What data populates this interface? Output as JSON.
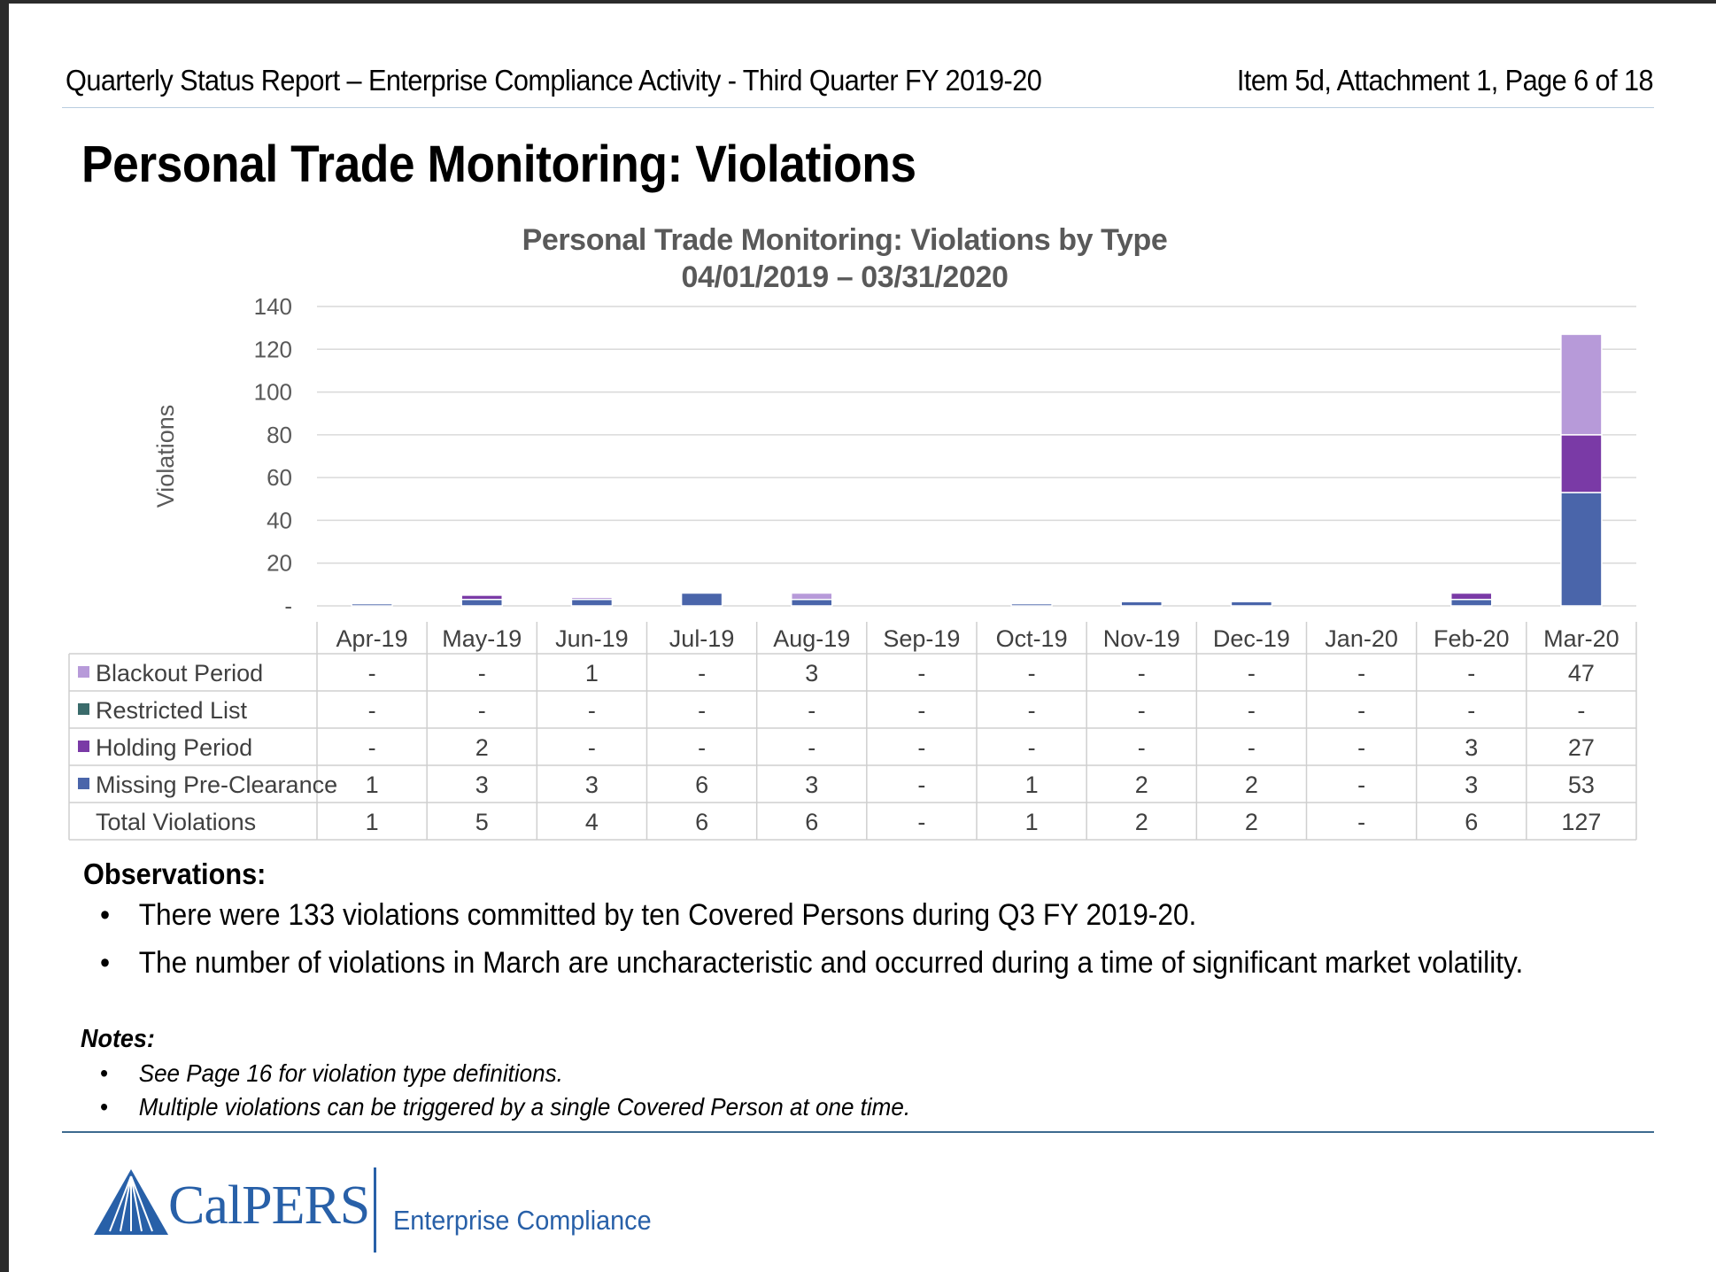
{
  "header": {
    "left": "Quarterly Status Report – Enterprise Compliance Activity - Third Quarter FY 2019-20",
    "right": "Item 5d, Attachment 1, Page 6 of 18"
  },
  "page_title": "Personal Trade Monitoring: Violations",
  "chart_data": {
    "type": "bar",
    "stacked": true,
    "title": "Personal Trade Monitoring: Violations by Type",
    "subtitle": "04/01/2019 – 03/31/2020",
    "xlabel": "",
    "ylabel": "Violations",
    "ylim": [
      0,
      140
    ],
    "yticks": [
      "-",
      "20",
      "40",
      "60",
      "80",
      "100",
      "120",
      "140"
    ],
    "grid": true,
    "legend": "data-table-left",
    "categories": [
      "Apr-19",
      "May-19",
      "Jun-19",
      "Jul-19",
      "Aug-19",
      "Sep-19",
      "Oct-19",
      "Nov-19",
      "Dec-19",
      "Jan-20",
      "Feb-20",
      "Mar-20"
    ],
    "series": [
      {
        "name": "Blackout Period",
        "color": "#b79ad9",
        "values": [
          0,
          0,
          1,
          0,
          3,
          0,
          0,
          0,
          0,
          0,
          0,
          47
        ]
      },
      {
        "name": "Restricted List",
        "color": "#3a6b6b",
        "values": [
          0,
          0,
          0,
          0,
          0,
          0,
          0,
          0,
          0,
          0,
          0,
          0
        ]
      },
      {
        "name": "Holding Period",
        "color": "#7a3aa6",
        "values": [
          0,
          2,
          0,
          0,
          0,
          0,
          0,
          0,
          0,
          0,
          3,
          27
        ]
      },
      {
        "name": "Missing Pre-Clearance",
        "color": "#4a65aa",
        "values": [
          1,
          3,
          3,
          6,
          3,
          0,
          1,
          2,
          2,
          0,
          3,
          53
        ]
      }
    ],
    "table": {
      "rows": [
        {
          "label": "Blackout Period",
          "cells": [
            "-",
            "-",
            "1",
            "-",
            "3",
            "-",
            "-",
            "-",
            "-",
            "-",
            "-",
            "47"
          ]
        },
        {
          "label": "Restricted List",
          "cells": [
            "-",
            "-",
            "-",
            "-",
            "-",
            "-",
            "-",
            "-",
            "-",
            "-",
            "-",
            "-"
          ]
        },
        {
          "label": "Holding Period",
          "cells": [
            "-",
            "2",
            "-",
            "-",
            "-",
            "-",
            "-",
            "-",
            "-",
            "-",
            "3",
            "27"
          ]
        },
        {
          "label": "Missing Pre-Clearance",
          "cells": [
            "1",
            "3",
            "3",
            "6",
            "3",
            "-",
            "1",
            "2",
            "2",
            "-",
            "3",
            "53"
          ]
        },
        {
          "label": "Total Violations",
          "cells": [
            "1",
            "5",
            "4",
            "6",
            "6",
            "-",
            "1",
            "2",
            "2",
            "-",
            "6",
            "127"
          ]
        }
      ]
    }
  },
  "observations": {
    "title": "Observations:",
    "bullet": "•",
    "items": [
      "There were 133 violations committed by ten Covered Persons during Q3 FY 2019-20.",
      "The number of violations in March are uncharacteristic and occurred during a time of significant market volatility."
    ]
  },
  "notes": {
    "title": "Notes:",
    "bullet": "•",
    "items": [
      "See Page 16 for violation type definitions.",
      "Multiple violations can be triggered by a single Covered Person at one time."
    ]
  },
  "footer": {
    "logo": "CalPERS",
    "department": "Enterprise Compliance",
    "brand_color": "#2860a8",
    "rule_color": "#3d6a8f"
  }
}
